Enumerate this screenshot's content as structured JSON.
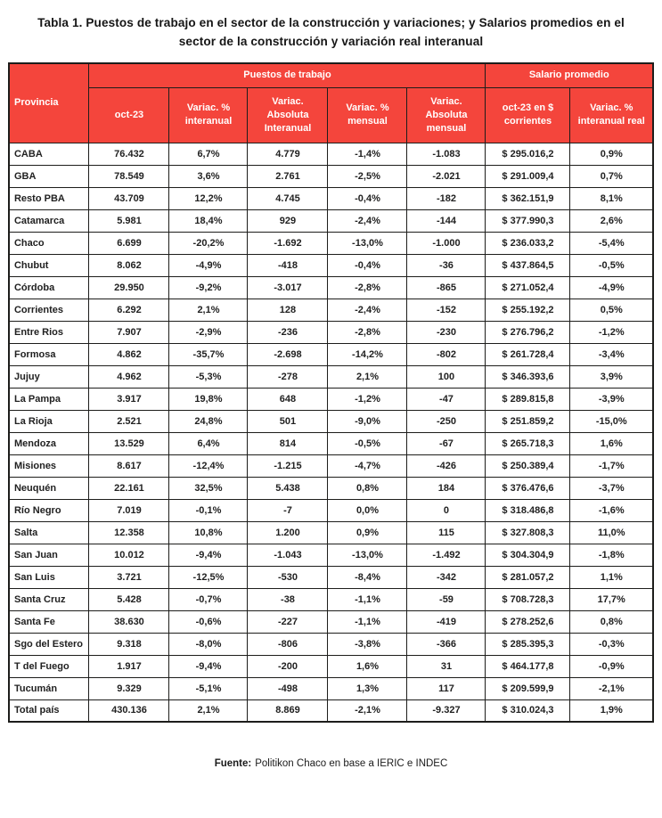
{
  "page": {
    "title": "Tabla 1. Puestos de trabajo en el sector de la construcción y variaciones; y Salarios promedios en el sector de la construcción y variación real interanual"
  },
  "table": {
    "group_headers": {
      "provincia": "Provincia",
      "puestos_de_trabajo": "Puestos de trabajo",
      "salario_promedio": "Salario promedio"
    },
    "sub_headers": [
      "oct-23",
      "Variac. % interanual",
      "Variac. Absoluta Interanual",
      "Variac. % mensual",
      "Variac. Absoluta mensual",
      "oct-23 en $ corrientes",
      "Variac. % interanual real"
    ],
    "rows": [
      [
        "CABA",
        "76.432",
        "6,7%",
        "4.779",
        "-1,4%",
        "-1.083",
        "$ 295.016,2",
        "0,9%"
      ],
      [
        "GBA",
        "78.549",
        "3,6%",
        "2.761",
        "-2,5%",
        "-2.021",
        "$ 291.009,4",
        "0,7%"
      ],
      [
        "Resto PBA",
        "43.709",
        "12,2%",
        "4.745",
        "-0,4%",
        "-182",
        "$ 362.151,9",
        "8,1%"
      ],
      [
        "Catamarca",
        "5.981",
        "18,4%",
        "929",
        "-2,4%",
        "-144",
        "$ 377.990,3",
        "2,6%"
      ],
      [
        "Chaco",
        "6.699",
        "-20,2%",
        "-1.692",
        "-13,0%",
        "-1.000",
        "$ 236.033,2",
        "-5,4%"
      ],
      [
        "Chubut",
        "8.062",
        "-4,9%",
        "-418",
        "-0,4%",
        "-36",
        "$ 437.864,5",
        "-0,5%"
      ],
      [
        "Córdoba",
        "29.950",
        "-9,2%",
        "-3.017",
        "-2,8%",
        "-865",
        "$ 271.052,4",
        "-4,9%"
      ],
      [
        "Corrientes",
        "6.292",
        "2,1%",
        "128",
        "-2,4%",
        "-152",
        "$ 255.192,2",
        "0,5%"
      ],
      [
        "Entre Rios",
        "7.907",
        "-2,9%",
        "-236",
        "-2,8%",
        "-230",
        "$ 276.796,2",
        "-1,2%"
      ],
      [
        "Formosa",
        "4.862",
        "-35,7%",
        "-2.698",
        "-14,2%",
        "-802",
        "$ 261.728,4",
        "-3,4%"
      ],
      [
        "Jujuy",
        "4.962",
        "-5,3%",
        "-278",
        "2,1%",
        "100",
        "$ 346.393,6",
        "3,9%"
      ],
      [
        "La Pampa",
        "3.917",
        "19,8%",
        "648",
        "-1,2%",
        "-47",
        "$ 289.815,8",
        "-3,9%"
      ],
      [
        "La Rioja",
        "2.521",
        "24,8%",
        "501",
        "-9,0%",
        "-250",
        "$ 251.859,2",
        "-15,0%"
      ],
      [
        "Mendoza",
        "13.529",
        "6,4%",
        "814",
        "-0,5%",
        "-67",
        "$ 265.718,3",
        "1,6%"
      ],
      [
        "Misiones",
        "8.617",
        "-12,4%",
        "-1.215",
        "-4,7%",
        "-426",
        "$ 250.389,4",
        "-1,7%"
      ],
      [
        "Neuquén",
        "22.161",
        "32,5%",
        "5.438",
        "0,8%",
        "184",
        "$ 376.476,6",
        "-3,7%"
      ],
      [
        "Río Negro",
        "7.019",
        "-0,1%",
        "-7",
        "0,0%",
        "0",
        "$ 318.486,8",
        "-1,6%"
      ],
      [
        "Salta",
        "12.358",
        "10,8%",
        "1.200",
        "0,9%",
        "115",
        "$ 327.808,3",
        "11,0%"
      ],
      [
        "San Juan",
        "10.012",
        "-9,4%",
        "-1.043",
        "-13,0%",
        "-1.492",
        "$ 304.304,9",
        "-1,8%"
      ],
      [
        "San Luis",
        "3.721",
        "-12,5%",
        "-530",
        "-8,4%",
        "-342",
        "$ 281.057,2",
        "1,1%"
      ],
      [
        "Santa Cruz",
        "5.428",
        "-0,7%",
        "-38",
        "-1,1%",
        "-59",
        "$ 708.728,3",
        "17,7%"
      ],
      [
        "Santa Fe",
        "38.630",
        "-0,6%",
        "-227",
        "-1,1%",
        "-419",
        "$ 278.252,6",
        "0,8%"
      ],
      [
        "Sgo del Estero",
        "9.318",
        "-8,0%",
        "-806",
        "-3,8%",
        "-366",
        "$ 285.395,3",
        "-0,3%"
      ],
      [
        "T del Fuego",
        "1.917",
        "-9,4%",
        "-200",
        "1,6%",
        "31",
        "$ 464.177,8",
        "-0,9%"
      ],
      [
        "Tucumán",
        "9.329",
        "-5,1%",
        "-498",
        "1,3%",
        "117",
        "$ 209.599,9",
        "-2,1%"
      ]
    ],
    "total_row": [
      "Total país",
      "430.136",
      "2,1%",
      "8.869",
      "-2,1%",
      "-9.327",
      "$ 310.024,3",
      "1,9%"
    ]
  },
  "footer": {
    "source_label": "Fuente:",
    "source_text": "Politikon Chaco en base a IERIC e INDEC"
  },
  "colors": {
    "header_bg": "#F4453C",
    "header_text": "#FFFFFF",
    "border": "#1D1D1B",
    "body_text": "#212121"
  }
}
